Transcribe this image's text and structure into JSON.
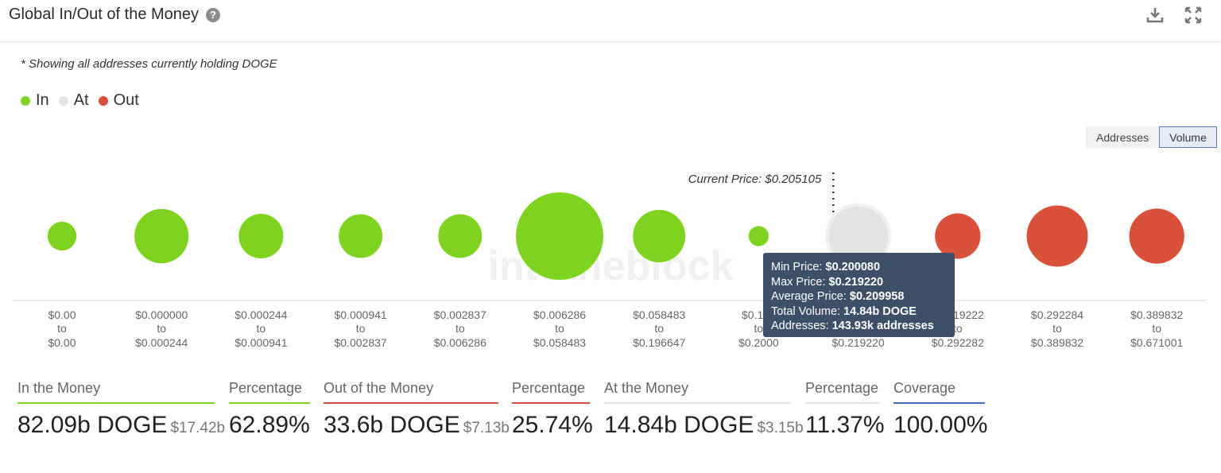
{
  "header": {
    "title": "Global In/Out of the Money",
    "help": "?"
  },
  "note": "* Showing all addresses currently holding DOGE",
  "legend": [
    {
      "label": "In",
      "color": "#7ed321"
    },
    {
      "label": "At",
      "color": "#e3e3e3"
    },
    {
      "label": "Out",
      "color": "#d9513a"
    }
  ],
  "toggle": {
    "addresses": "Addresses",
    "volume": "Volume",
    "selected": "Volume"
  },
  "chart_data": {
    "type": "bubble",
    "current_price_label": "Current Price: $0.205105",
    "watermark": "intotheblock",
    "ranges": [
      {
        "from": "$0.00",
        "to": "$0.00",
        "status": "in",
        "relative_size": 0.33
      },
      {
        "from": "$0.000000",
        "to": "$0.000244",
        "status": "in",
        "relative_size": 0.62
      },
      {
        "from": "$0.000244",
        "to": "$0.000941",
        "status": "in",
        "relative_size": 0.51
      },
      {
        "from": "$0.000941",
        "to": "$0.002837",
        "status": "in",
        "relative_size": 0.5
      },
      {
        "from": "$0.002837",
        "to": "$0.006286",
        "status": "in",
        "relative_size": 0.5
      },
      {
        "from": "$0.006286",
        "to": "$0.058483",
        "status": "in",
        "relative_size": 1.0
      },
      {
        "from": "$0.058483",
        "to": "$0.196647",
        "status": "in",
        "relative_size": 0.6
      },
      {
        "from": "$0.196647",
        "to": "$0.200080",
        "status": "in",
        "relative_size": 0.23,
        "from_display": "$0.196",
        "to_display": "$0.2000"
      },
      {
        "from": "$0.200080",
        "to": "$0.219220",
        "status": "at",
        "relative_size": 0.68,
        "from_display": "",
        "to_display": "$0.219220"
      },
      {
        "from": "$0.219222",
        "to": "$0.292282",
        "status": "out",
        "relative_size": 0.52,
        "from_display": "$0.219222",
        "to_display": "$0.292282"
      },
      {
        "from": "$0.292284",
        "to": "$0.389832",
        "status": "out",
        "relative_size": 0.7
      },
      {
        "from": "$0.389832",
        "to": "$0.671001",
        "status": "out",
        "relative_size": 0.63
      }
    ],
    "connector": "to"
  },
  "tooltip": {
    "lines": [
      {
        "label": "Min Price: ",
        "value": "$0.200080"
      },
      {
        "label": "Max Price: ",
        "value": "$0.219220"
      },
      {
        "label": "Average Price: ",
        "value": "$0.209958"
      },
      {
        "label": "Total Volume: ",
        "value": "14.84b DOGE"
      },
      {
        "label": "Addresses: ",
        "value": "143.93k addresses"
      }
    ]
  },
  "stats": [
    {
      "label": "In the Money",
      "value": "82.09b DOGE",
      "sub": "$17.42b",
      "color": "#7ed321"
    },
    {
      "label": "Percentage",
      "value": "62.89%",
      "sub": "",
      "color": "#7ed321"
    },
    {
      "label": "Out of the Money",
      "value": "33.6b DOGE",
      "sub": "$7.13b",
      "color": "#d9513a"
    },
    {
      "label": "Percentage",
      "value": "25.74%",
      "sub": "",
      "color": "#d9513a"
    },
    {
      "label": "At the Money",
      "value": "14.84b DOGE",
      "sub": "$3.15b",
      "color": "#e3e3e3"
    },
    {
      "label": "Percentage",
      "value": "11.37%",
      "sub": "",
      "color": "#e3e3e3"
    },
    {
      "label": "Coverage",
      "value": "100.00%",
      "sub": "",
      "color": "#3f6fbf"
    }
  ]
}
